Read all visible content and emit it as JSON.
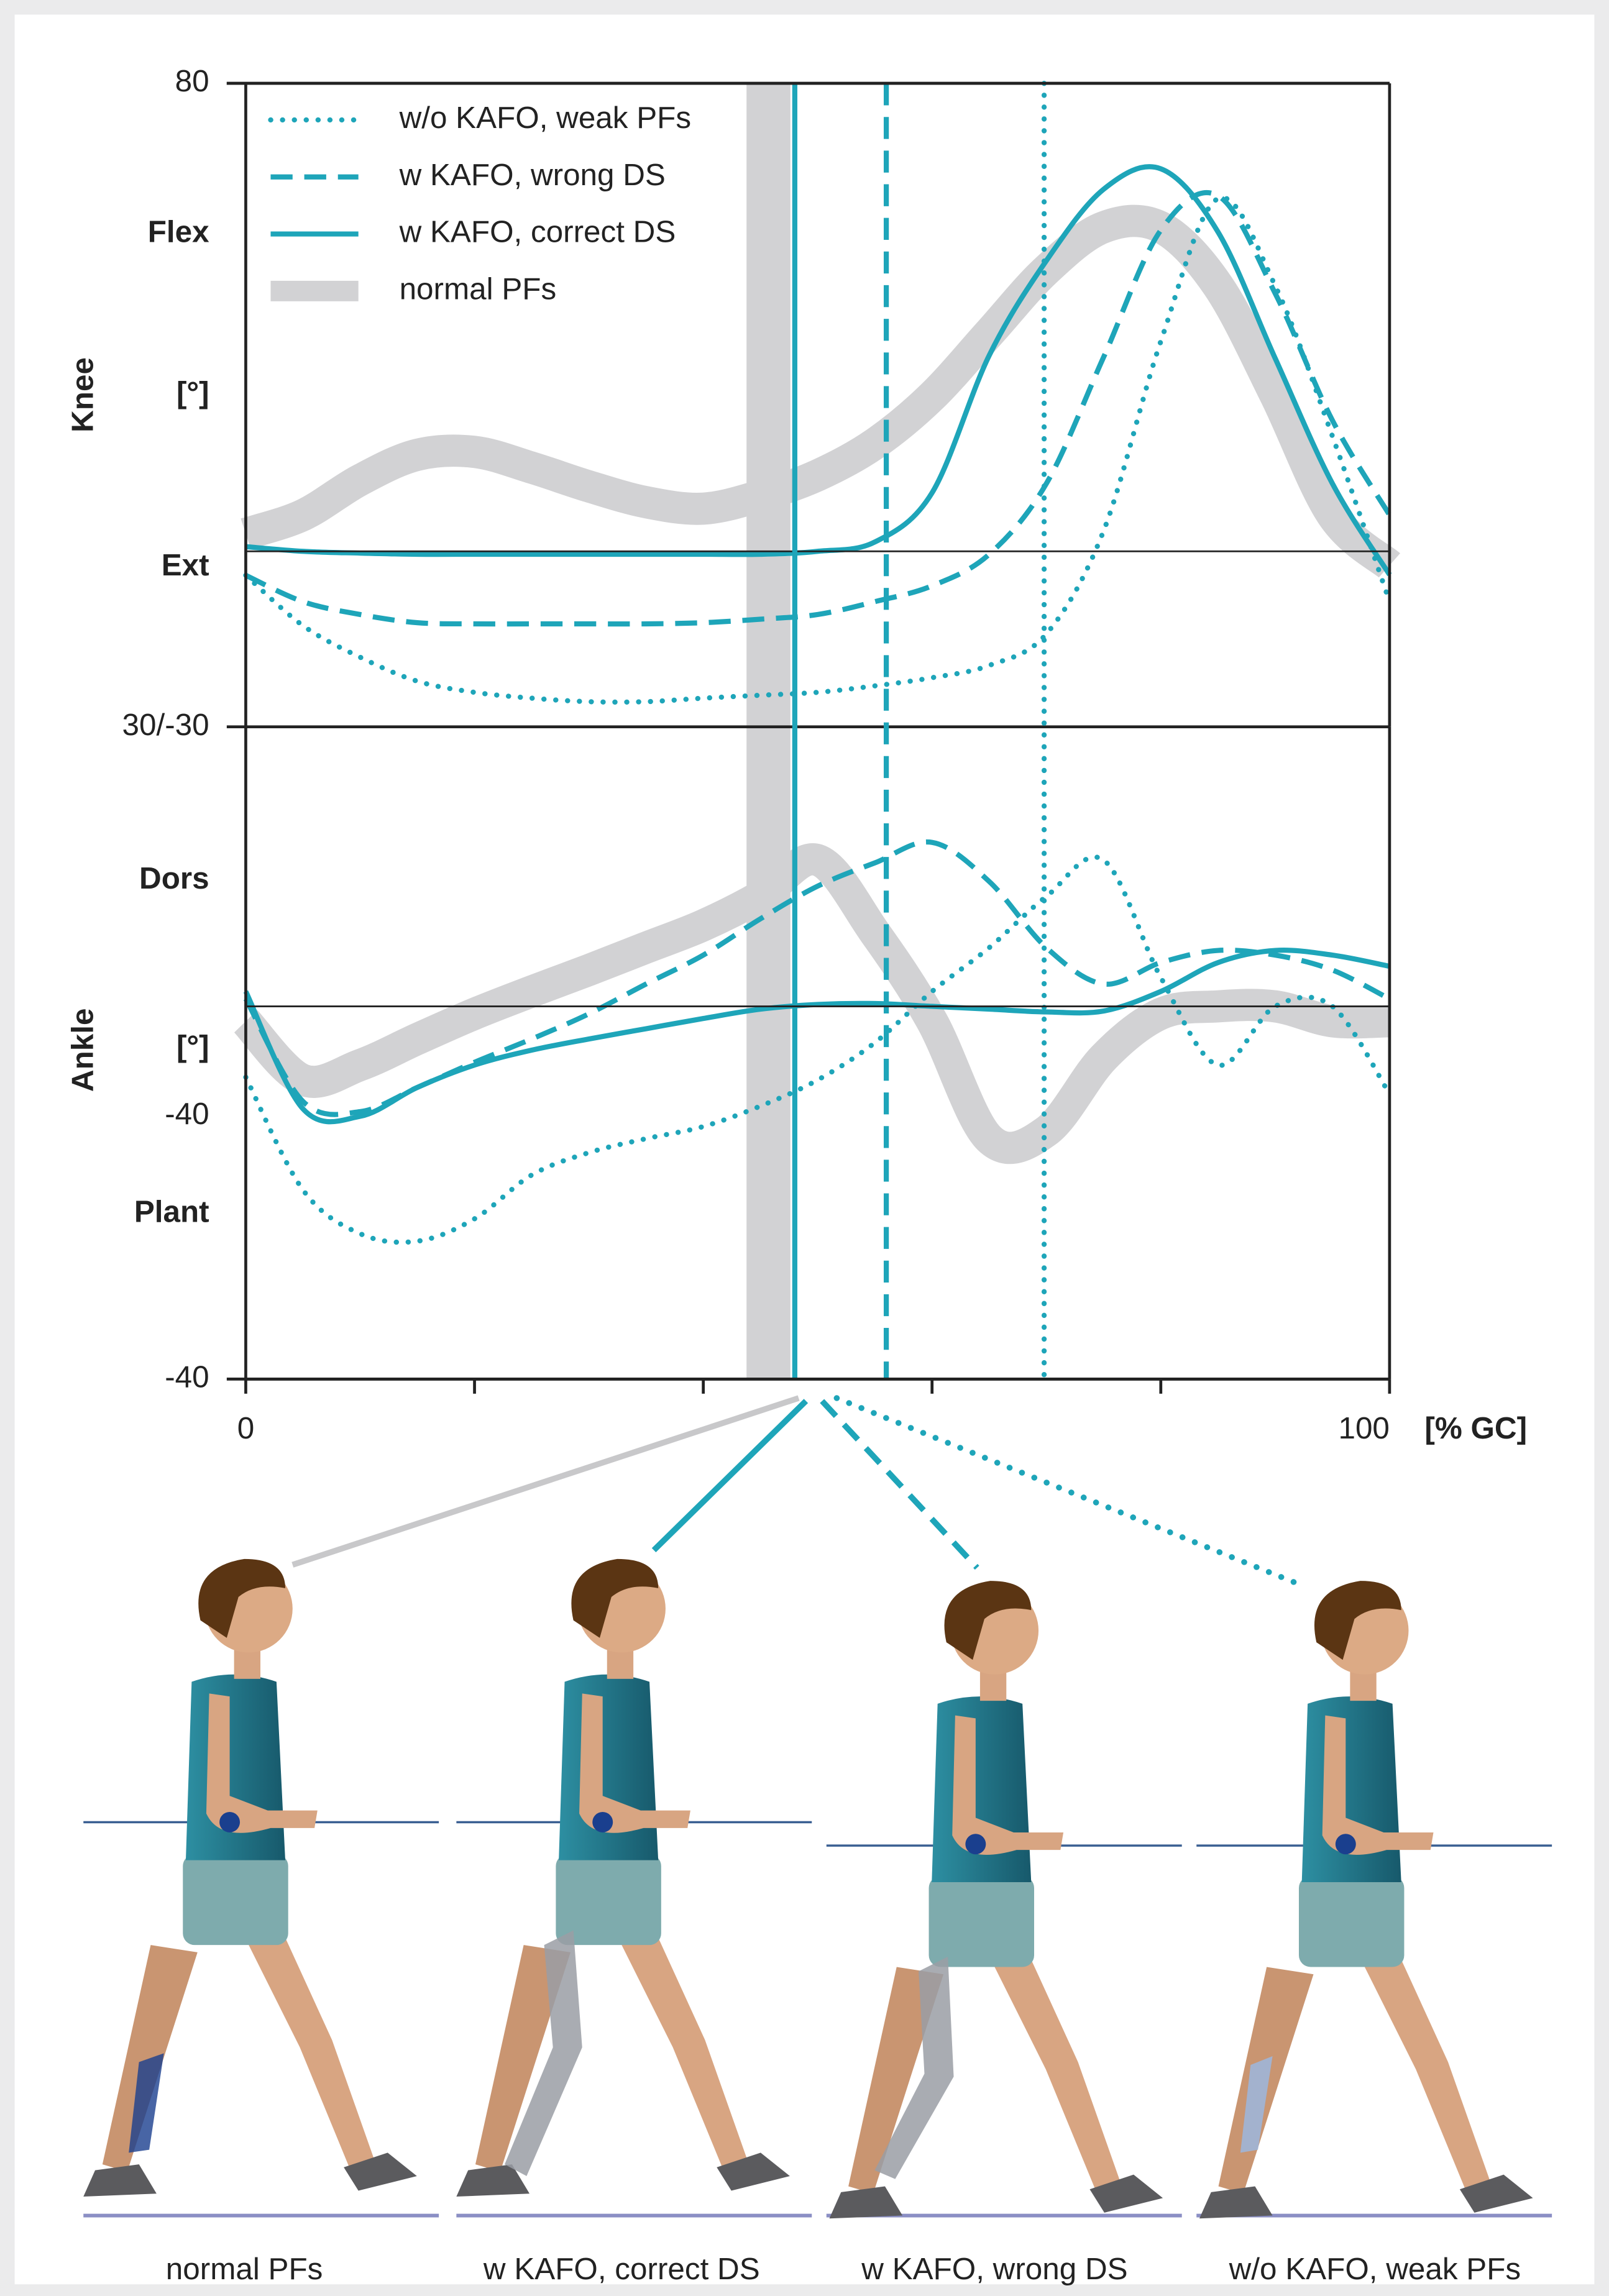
{
  "chart_data": [
    {
      "type": "line",
      "ylabel": "Knee",
      "unit": "[°]",
      "top_label": "Flex",
      "bottom_label": "Ext",
      "xlim": [
        0,
        100
      ],
      "ylim": [
        -30,
        80
      ],
      "yticks": [
        80,
        {
          "value": -30,
          "label": "30/-30"
        }
      ],
      "hline": 0,
      "legend": "upper left",
      "x": [
        0,
        5,
        10,
        15,
        20,
        25,
        30,
        35,
        40,
        45,
        50,
        55,
        60,
        65,
        70,
        75,
        80,
        85,
        90,
        95,
        100
      ],
      "series": [
        {
          "name": "w/o KAFO, weak PFs",
          "style": "dotted",
          "color": "#1ea5b9",
          "event_x": 69.8,
          "values": [
            -4.1,
            -12.7,
            -18.1,
            -22.2,
            -24.1,
            -25.1,
            -25.7,
            -25.7,
            -25.1,
            -24.6,
            -24.1,
            -23,
            -21.6,
            -19.5,
            -14.1,
            3.5,
            35.9,
            60.3,
            45.4,
            19.7,
            -8.6
          ]
        },
        {
          "name": "w KAFO, wrong DS",
          "style": "dashed",
          "color": "#1ea5b9",
          "event_x": 56,
          "values": [
            -4.1,
            -8.6,
            -10.8,
            -12.2,
            -12.4,
            -12.4,
            -12.4,
            -12.4,
            -12.2,
            -11.6,
            -10.8,
            -8.6,
            -5.9,
            -0.5,
            11.6,
            33.2,
            54.9,
            60.8,
            44.1,
            22.4,
            6.2
          ]
        },
        {
          "name": "w KAFO, correct DS",
          "style": "solid",
          "color": "#1ea5b9",
          "event_x": 48,
          "values": [
            0.8,
            0,
            -0.3,
            -0.5,
            -0.5,
            -0.5,
            -0.5,
            -0.5,
            -0.5,
            -0.5,
            0,
            1.6,
            10,
            33.5,
            49.7,
            61.9,
            65.4,
            54.6,
            33,
            11.6,
            -4
          ]
        },
        {
          "name": "normal PFs",
          "style": "band",
          "color": "#d2d2d4",
          "event_x": 45.7,
          "values": [
            3,
            6.2,
            12.2,
            16.5,
            17,
            14.3,
            11.1,
            8.4,
            7.3,
            9.5,
            13,
            18.4,
            26.5,
            37.3,
            48.1,
            55.4,
            55.4,
            45.4,
            26.8,
            6.2,
            -2.4
          ]
        }
      ]
    },
    {
      "type": "line",
      "ylabel": "Ankle",
      "unit": "[°]",
      "top_label": "Dors",
      "bottom_label": "Plant",
      "note": "-40",
      "xlim": [
        0,
        100
      ],
      "ylim": [
        -40,
        30
      ],
      "xticks": [
        0,
        100
      ],
      "minor_xticks": [
        20,
        40,
        60,
        80
      ],
      "xlabel": "[% GC]",
      "yticks": [
        -40
      ],
      "hline": 0,
      "x": [
        0,
        5,
        10,
        15,
        20,
        25,
        30,
        35,
        40,
        45,
        50,
        55,
        60,
        65,
        70,
        75,
        80,
        85,
        90,
        95,
        100
      ],
      "series": [
        {
          "style": "band",
          "color": "#d2d2d4",
          "values": [
            -1.6,
            -7.9,
            -6.3,
            -3.5,
            -0.8,
            1.6,
            3.9,
            6.3,
            8.7,
            11.8,
            15.7,
            7.9,
            -1.6,
            -14.2,
            -13.4,
            -5.5,
            -0.8,
            0,
            0,
            -1.6,
            -1.6
          ]
        },
        {
          "style": "dotted",
          "color": "#1ea5b9",
          "values": [
            -7.6,
            -19.7,
            -24.4,
            -25.2,
            -22.8,
            -18.1,
            -15.7,
            -14.2,
            -12.9,
            -10.7,
            -7.9,
            -3.9,
            1.6,
            6.3,
            11.8,
            15.7,
            3.1,
            -6.3,
            0,
            0,
            -9.4
          ]
        },
        {
          "style": "dashed",
          "color": "#1ea5b9",
          "values": [
            0.8,
            -10.2,
            -11.3,
            -8.7,
            -6,
            -3.5,
            -0.8,
            2.4,
            5.5,
            9.4,
            12.9,
            15.4,
            17.6,
            13.4,
            6.3,
            2.4,
            4.7,
            6,
            5.5,
            3.9,
            0.8
          ]
        },
        {
          "style": "solid",
          "color": "#1ea5b9",
          "values": [
            1.6,
            -11,
            -11.8,
            -8.7,
            -6.3,
            -4.7,
            -3.5,
            -2.4,
            -1.3,
            -0.3,
            0.2,
            0.3,
            0,
            -0.3,
            -0.6,
            -0.5,
            1.6,
            4.7,
            6,
            5.5,
            4.3
          ]
        }
      ]
    }
  ],
  "figures": [
    {
      "label": "normal PFs"
    },
    {
      "label": "w KAFO, correct DS"
    },
    {
      "label": "w KAFO, wrong DS"
    },
    {
      "label": "w/o KAFO, weak PFs"
    }
  ]
}
